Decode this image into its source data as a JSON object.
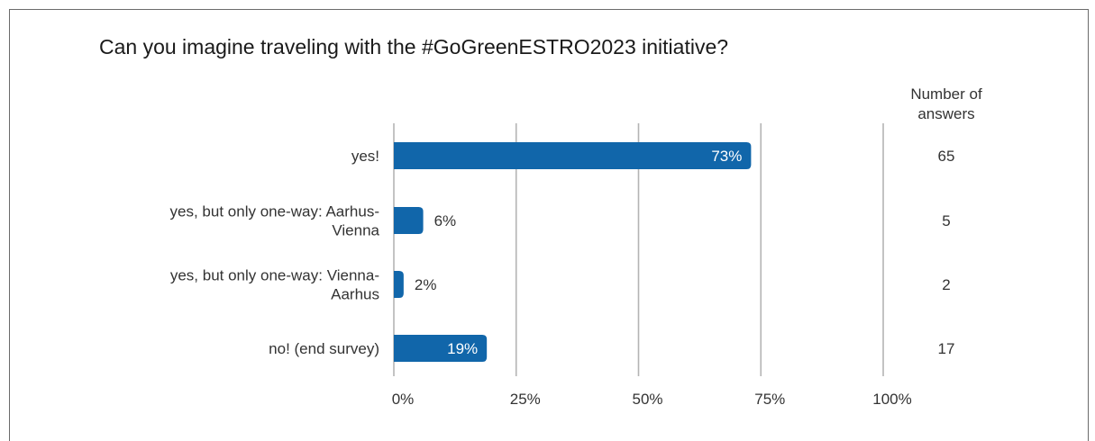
{
  "chart_data": {
    "type": "bar",
    "orientation": "horizontal",
    "title": "Can you imagine traveling with the #GoGreenESTRO2023 initiative?",
    "categories": [
      [
        "yes!"
      ],
      [
        "yes, but only one-way: Aarhus-",
        "Vienna"
      ],
      [
        "yes, but only one-way: Vienna-",
        "Aarhus"
      ],
      [
        "no! (end survey)"
      ]
    ],
    "values": [
      73,
      6,
      2,
      19
    ],
    "value_labels": [
      "73%",
      "6%",
      "2%",
      "19%"
    ],
    "answers_header": [
      "Number of",
      "answers"
    ],
    "answers": [
      65,
      5,
      2,
      17
    ],
    "xlim": [
      0,
      100
    ],
    "xticks": [
      0,
      25,
      50,
      75,
      100
    ],
    "xtick_labels": [
      "0%",
      "25%",
      "50%",
      "75%",
      "100%"
    ],
    "grid": true,
    "bar_color": "#1166aa",
    "grid_color": "#b4b4b4"
  }
}
